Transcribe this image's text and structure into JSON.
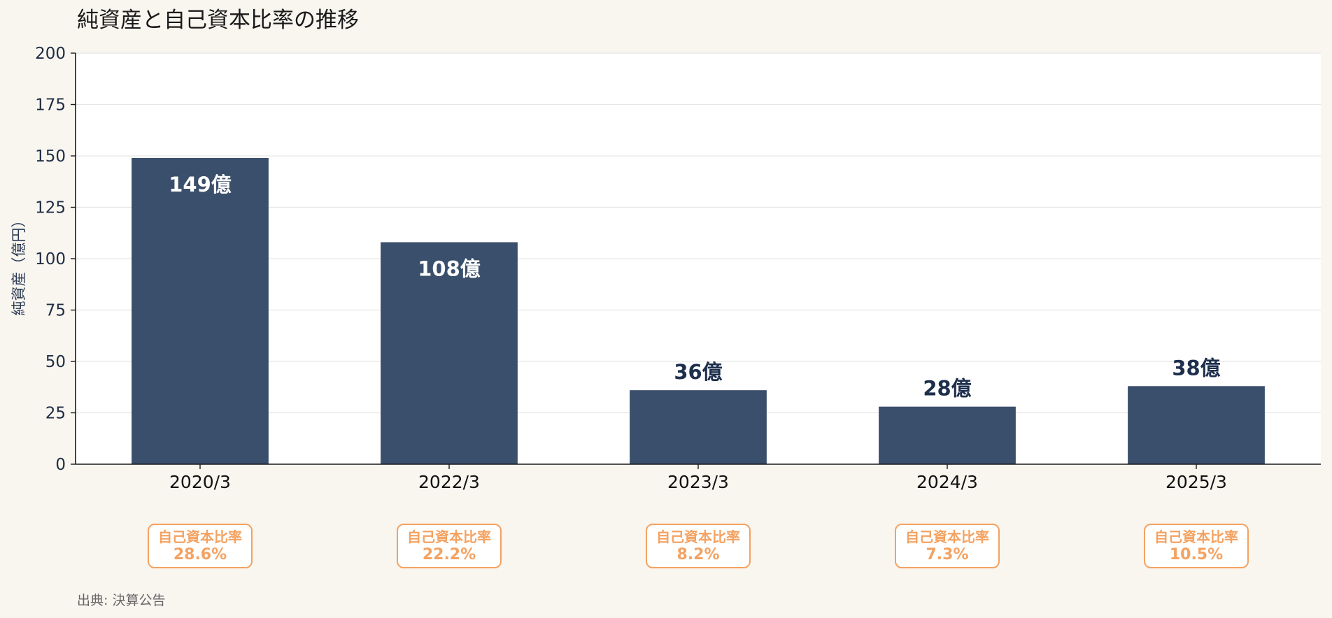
{
  "chart_data": {
    "type": "bar",
    "title": "純資産と自己資本比率の推移",
    "ylabel": "純資産（億円）",
    "xlabel": "",
    "ylim": [
      0,
      200
    ],
    "yticks": [
      0,
      25,
      50,
      75,
      100,
      125,
      150,
      175,
      200
    ],
    "grid": true,
    "categories": [
      "2020/3",
      "2022/3",
      "2023/3",
      "2024/3",
      "2025/3"
    ],
    "values": [
      149,
      108,
      36,
      28,
      38
    ],
    "value_labels": [
      "149億",
      "108億",
      "36億",
      "28億",
      "38億"
    ],
    "ratio_label": "自己資本比率",
    "equity_ratio": [
      "28.6%",
      "22.2%",
      "8.2%",
      "7.3%",
      "10.5%"
    ],
    "source": "出典: 決算公告"
  },
  "colors": {
    "background": "#f9f6f0",
    "plot_background": "#ffffff",
    "bar": "#3a4f6b",
    "label_inside": "#ffffff",
    "label_outside": "#1e2f4d",
    "ratio_accent": "#f4a261",
    "grid": "#e6e6e6",
    "axis": "#1a1a1a"
  }
}
